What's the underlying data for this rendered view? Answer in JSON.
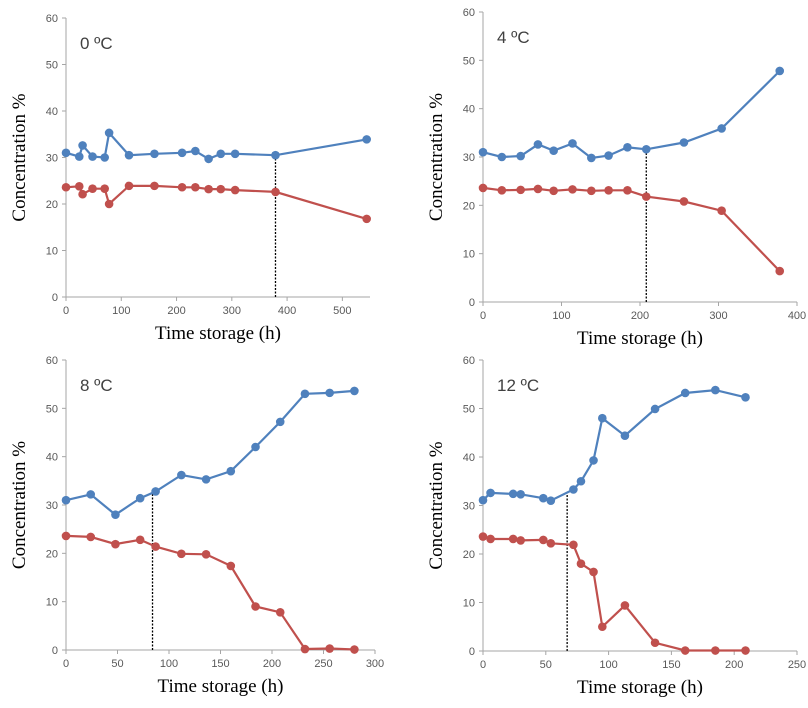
{
  "chart_data": [
    {
      "type": "line",
      "panel_label": "0 ºC",
      "xlabel": "Time storage (h)",
      "ylabel": "Concentration %",
      "xlim": [
        0,
        550
      ],
      "xticks": [
        0,
        100,
        200,
        300,
        400,
        500
      ],
      "ylim": [
        0,
        60
      ],
      "yticks": [
        0,
        10,
        20,
        30,
        40,
        50,
        60
      ],
      "grid": false,
      "marker_time": 379,
      "series": [
        {
          "color": "#4f81bd",
          "x": [
            0,
            24,
            30,
            48,
            70,
            78,
            114,
            160,
            210,
            234,
            258,
            280,
            306,
            379,
            544
          ],
          "y": [
            31,
            30.2,
            32.6,
            30.2,
            30,
            35.3,
            30.5,
            30.8,
            31,
            31.4,
            29.7,
            30.8,
            30.8,
            30.5,
            33.9
          ]
        },
        {
          "color": "#c0504d",
          "x": [
            0,
            24,
            30,
            48,
            70,
            78,
            114,
            160,
            210,
            234,
            258,
            280,
            306,
            379,
            544
          ],
          "y": [
            23.6,
            23.8,
            22.1,
            23.3,
            23.3,
            20,
            23.9,
            23.9,
            23.6,
            23.6,
            23.2,
            23.2,
            23,
            22.6,
            16.8
          ]
        }
      ]
    },
    {
      "type": "line",
      "panel_label": "4 ºC",
      "xlabel": "Time storage (h)",
      "ylabel": "Concentration %",
      "xlim": [
        0,
        400
      ],
      "xticks": [
        0,
        100,
        200,
        300,
        400
      ],
      "ylim": [
        0,
        60
      ],
      "yticks": [
        0,
        10,
        20,
        30,
        40,
        50,
        60
      ],
      "grid": false,
      "marker_time": 208,
      "series": [
        {
          "color": "#4f81bd",
          "x": [
            0,
            24,
            48,
            70,
            90,
            114,
            138,
            160,
            184,
            208,
            256,
            304,
            378
          ],
          "y": [
            31,
            30,
            30.2,
            32.6,
            31.3,
            32.8,
            29.8,
            30.3,
            32,
            31.6,
            33,
            35.9,
            47.8
          ]
        },
        {
          "color": "#c0504d",
          "x": [
            0,
            24,
            48,
            70,
            90,
            114,
            138,
            160,
            184,
            208,
            256,
            304,
            378
          ],
          "y": [
            23.6,
            23.1,
            23.2,
            23.4,
            23,
            23.3,
            23,
            23.1,
            23.1,
            21.8,
            20.8,
            18.9,
            6.4
          ]
        }
      ]
    },
    {
      "type": "line",
      "panel_label": "8 ºC",
      "xlabel": "Time storage (h)",
      "ylabel": "Concentration %",
      "xlim": [
        0,
        300
      ],
      "xticks": [
        0,
        50,
        100,
        150,
        200,
        250,
        300
      ],
      "ylim": [
        0,
        60
      ],
      "yticks": [
        0,
        10,
        20,
        30,
        40,
        50,
        60
      ],
      "grid": false,
      "marker_time": 84,
      "series": [
        {
          "color": "#4f81bd",
          "x": [
            0,
            24,
            48,
            72,
            87,
            112,
            136,
            160,
            184,
            208,
            232,
            256,
            280
          ],
          "y": [
            31,
            32.2,
            28,
            31.4,
            32.8,
            36.2,
            35.3,
            37,
            42,
            47.2,
            53,
            53.2,
            53.6
          ]
        },
        {
          "color": "#c0504d",
          "x": [
            0,
            24,
            48,
            72,
            87,
            112,
            136,
            160,
            184,
            208,
            232,
            256,
            280
          ],
          "y": [
            23.6,
            23.4,
            21.9,
            22.8,
            21.4,
            19.9,
            19.8,
            17.4,
            9,
            7.8,
            0.2,
            0.3,
            0.1
          ]
        }
      ]
    },
    {
      "type": "line",
      "panel_label": "12 ºC",
      "xlabel": "Time storage (h)",
      "ylabel": "Concentration %",
      "xlim": [
        0,
        250
      ],
      "xticks": [
        0,
        50,
        100,
        150,
        200,
        250
      ],
      "ylim": [
        0,
        60
      ],
      "yticks": [
        0,
        10,
        20,
        30,
        40,
        50,
        60
      ],
      "grid": false,
      "marker_time": 67,
      "series": [
        {
          "color": "#4f81bd",
          "x": [
            0,
            6,
            24,
            30,
            48,
            54,
            72,
            78,
            88,
            95,
            113,
            137,
            161,
            185,
            209
          ],
          "y": [
            31.1,
            32.6,
            32.4,
            32.3,
            31.5,
            31,
            33.3,
            35,
            39.3,
            48,
            44.4,
            49.9,
            53.2,
            53.8,
            52.3
          ]
        },
        {
          "color": "#c0504d",
          "x": [
            0,
            6,
            24,
            30,
            48,
            54,
            72,
            78,
            88,
            95,
            113,
            137,
            161,
            185,
            209
          ],
          "y": [
            23.6,
            23.1,
            23.1,
            22.8,
            22.9,
            22.2,
            21.9,
            18,
            16.3,
            5,
            9.4,
            1.7,
            0.1,
            0.1,
            0.1
          ]
        }
      ]
    }
  ]
}
